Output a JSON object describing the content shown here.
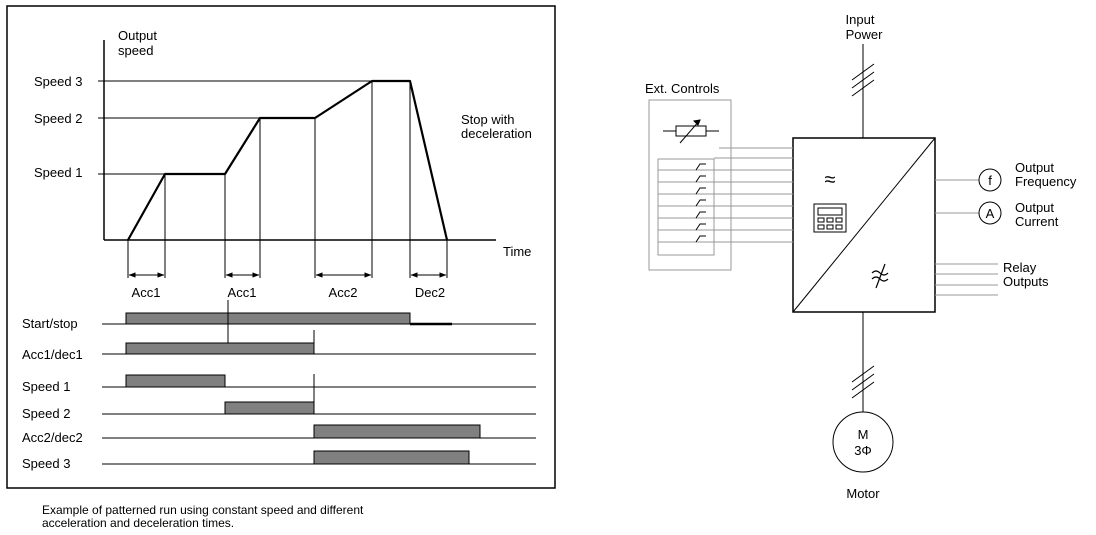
{
  "left": {
    "labels": {
      "output_speed_line1": "Output",
      "output_speed_line2": "speed",
      "speed3": "Speed 3",
      "speed2": "Speed 2",
      "speed1": "Speed 1",
      "stop_line1": "Stop with",
      "stop_line2": "deceleration",
      "time": "Time"
    },
    "intervals": [
      "Acc1",
      "Acc1",
      "Acc2",
      "Dec2"
    ],
    "signals": [
      "Start/stop",
      "Acc1/dec1",
      "Speed 1",
      "Speed 2",
      "Acc2/dec2",
      "Speed 3"
    ],
    "caption_line1": "Example of patterned run using constant speed and different",
    "caption_line2": "acceleration and deceleration times."
  },
  "right": {
    "input_line1": "Input",
    "input_line2": "Power",
    "ext_controls": "Ext. Controls",
    "approx_symbol": "≈",
    "freq_meter_symbol": "f",
    "output_freq_line1": "Output",
    "output_freq_line2": "Frequency",
    "current_meter_symbol": "A",
    "output_current_line1": "Output",
    "output_current_line2": "Current",
    "relay_line1": "Relay",
    "relay_line2": "Outputs",
    "motor_line1": "M",
    "motor_line2": "3Φ",
    "motor_label": "Motor"
  }
}
